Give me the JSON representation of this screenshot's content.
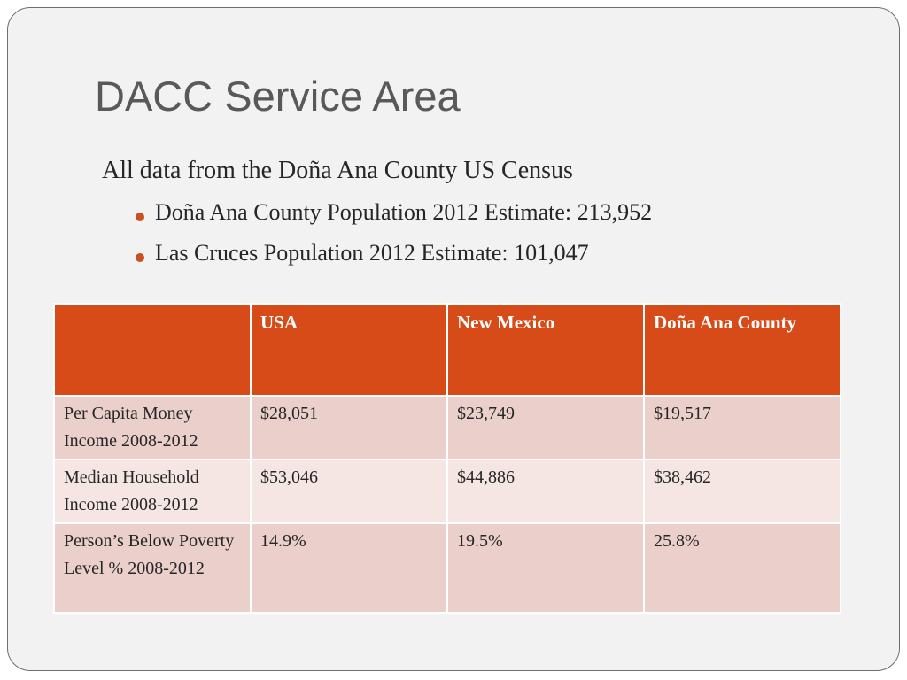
{
  "slide": {
    "title": "DACC Service Area",
    "intro": "All data from the Doña Ana County US Census",
    "bullets": [
      "Doña Ana County Population 2012 Estimate: 213,952",
      "Las Cruces Population 2012 Estimate: 101,047"
    ],
    "bullet_color": "#cc4f1f"
  },
  "table": {
    "header_color": "#d64b18",
    "headers": [
      "",
      "USA",
      "New Mexico",
      "Doña Ana County"
    ],
    "rows": [
      {
        "label": "Per Capita Money Income 2008-2012",
        "usa": "$28,051",
        "new_mexico": "$23,749",
        "dona_ana": "$19,517"
      },
      {
        "label": "Median Household Income 2008-2012",
        "usa": "$53,046",
        "new_mexico": "$44,886",
        "dona_ana": "$38,462"
      },
      {
        "label": "Person’s Below Poverty Level % 2008-2012",
        "usa": "14.9%",
        "new_mexico": "19.5%",
        "dona_ana": "25.8%"
      }
    ]
  }
}
